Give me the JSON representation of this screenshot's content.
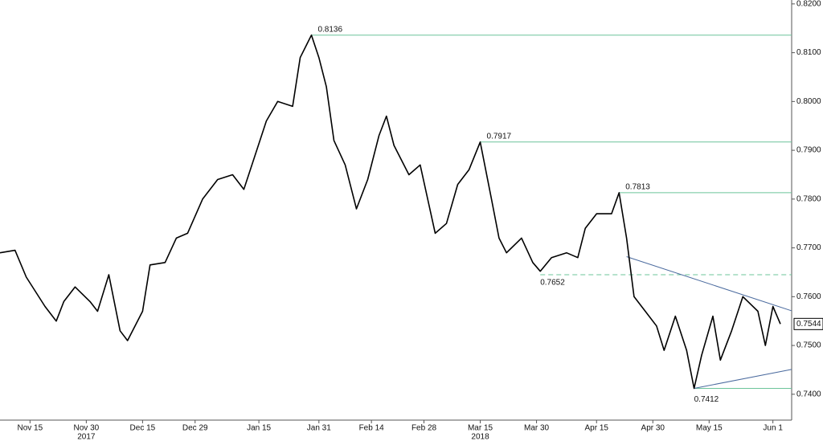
{
  "chart_data": {
    "type": "line",
    "color": "#000000",
    "x": [
      "2017-11-07",
      "2017-11-11",
      "2017-11-14",
      "2017-11-19",
      "2017-11-22",
      "2017-11-24",
      "2017-11-27",
      "2017-12-01",
      "2017-12-03",
      "2017-12-06",
      "2017-12-09",
      "2017-12-11",
      "2017-12-15",
      "2017-12-17",
      "2017-12-21",
      "2017-12-24",
      "2017-12-27",
      "2017-12-31",
      "2018-01-04",
      "2018-01-08",
      "2018-01-11",
      "2018-01-14",
      "2018-01-17",
      "2018-01-20",
      "2018-01-24",
      "2018-01-26",
      "2018-01-29",
      "2018-01-31",
      "2018-02-02",
      "2018-02-04",
      "2018-02-07",
      "2018-02-10",
      "2018-02-13",
      "2018-02-16",
      "2018-02-18",
      "2018-02-20",
      "2018-02-24",
      "2018-02-27",
      "2018-03-03",
      "2018-03-06",
      "2018-03-09",
      "2018-03-12",
      "2018-03-15",
      "2018-03-18",
      "2018-03-20",
      "2018-03-22",
      "2018-03-26",
      "2018-03-29",
      "2018-03-31",
      "2018-04-03",
      "2018-04-07",
      "2018-04-10",
      "2018-04-12",
      "2018-04-15",
      "2018-04-19",
      "2018-04-21",
      "2018-04-23",
      "2018-04-25",
      "2018-04-28",
      "2018-05-01",
      "2018-05-03",
      "2018-05-06",
      "2018-05-09",
      "2018-05-11",
      "2018-05-13",
      "2018-05-16",
      "2018-05-18",
      "2018-05-21",
      "2018-05-24",
      "2018-05-28",
      "2018-05-30",
      "2018-06-01",
      "2018-06-03"
    ],
    "values": [
      0.769,
      0.7695,
      0.764,
      0.758,
      0.755,
      0.759,
      0.762,
      0.759,
      0.757,
      0.7645,
      0.753,
      0.751,
      0.757,
      0.7665,
      0.767,
      0.772,
      0.773,
      0.78,
      0.784,
      0.785,
      0.782,
      0.789,
      0.796,
      0.8,
      0.799,
      0.809,
      0.8136,
      0.809,
      0.803,
      0.792,
      0.787,
      0.778,
      0.784,
      0.793,
      0.797,
      0.791,
      0.785,
      0.787,
      0.773,
      0.775,
      0.783,
      0.786,
      0.7917,
      0.78,
      0.772,
      0.769,
      0.772,
      0.767,
      0.7652,
      0.768,
      0.769,
      0.768,
      0.774,
      0.777,
      0.777,
      0.7813,
      0.772,
      0.76,
      0.757,
      0.754,
      0.749,
      0.756,
      0.749,
      0.7412,
      0.748,
      0.756,
      0.747,
      0.753,
      0.76,
      0.757,
      0.75,
      0.758,
      0.7544
    ],
    "xlim": [
      "2017-11-07",
      "2018-06-06"
    ],
    "xticks": [
      {
        "value": "2017-11-15",
        "label": "Nov 15"
      },
      {
        "value": "2017-11-30",
        "label": "Nov 30"
      },
      {
        "value": "2017-12-15",
        "label": "Dec 15"
      },
      {
        "value": "2017-12-29",
        "label": "Dec 29"
      },
      {
        "value": "2018-01-15",
        "label": "Jan 15"
      },
      {
        "value": "2018-01-31",
        "label": "Jan 31"
      },
      {
        "value": "2018-02-14",
        "label": "Feb 14"
      },
      {
        "value": "2018-02-28",
        "label": "Feb 28"
      },
      {
        "value": "2018-03-15",
        "label": "Mar 15"
      },
      {
        "value": "2018-03-30",
        "label": "Mar 30"
      },
      {
        "value": "2018-04-15",
        "label": "Apr 15"
      },
      {
        "value": "2018-04-30",
        "label": "Apr 30"
      },
      {
        "value": "2018-05-15",
        "label": "May 15"
      },
      {
        "value": "2018-06-01",
        "label": "Jun 1"
      }
    ],
    "x_year_labels": [
      {
        "value": "2017-11-30",
        "label": "2017"
      },
      {
        "value": "2018-03-15",
        "label": "2018"
      }
    ],
    "ylim": [
      0.7347,
      0.8208
    ],
    "yticks": [
      {
        "value": 0.74,
        "label": "0.7400"
      },
      {
        "value": 0.75,
        "label": "0.7500"
      },
      {
        "value": 0.76,
        "label": "0.7600"
      },
      {
        "value": 0.77,
        "label": "0.7700"
      },
      {
        "value": 0.78,
        "label": "0.7800"
      },
      {
        "value": 0.79,
        "label": "0.7900"
      },
      {
        "value": 0.8,
        "label": "0.8000"
      },
      {
        "value": 0.81,
        "label": "0.8100"
      },
      {
        "value": 0.82,
        "label": "0.8200"
      }
    ],
    "levels": [
      {
        "value": 0.8136,
        "x": "2018-01-29"
      },
      {
        "value": 0.7917,
        "x": "2018-03-15"
      },
      {
        "value": 0.7813,
        "x": "2018-04-21"
      },
      {
        "value": 0.7652,
        "x": "2018-03-31",
        "line_value": 0.7645,
        "dashed": true
      },
      {
        "value": 0.7412,
        "x": "2018-05-11"
      }
    ],
    "level_color": "#6cc49a",
    "trendlines": [
      {
        "x": [
          "2018-04-23",
          "2018-06-06"
        ],
        "values": [
          0.7682,
          0.7571
        ]
      },
      {
        "x": [
          "2018-05-11",
          "2018-06-06"
        ],
        "values": [
          0.7412,
          0.7451
        ]
      }
    ],
    "trend_color": "#4a6a9e"
  }
}
